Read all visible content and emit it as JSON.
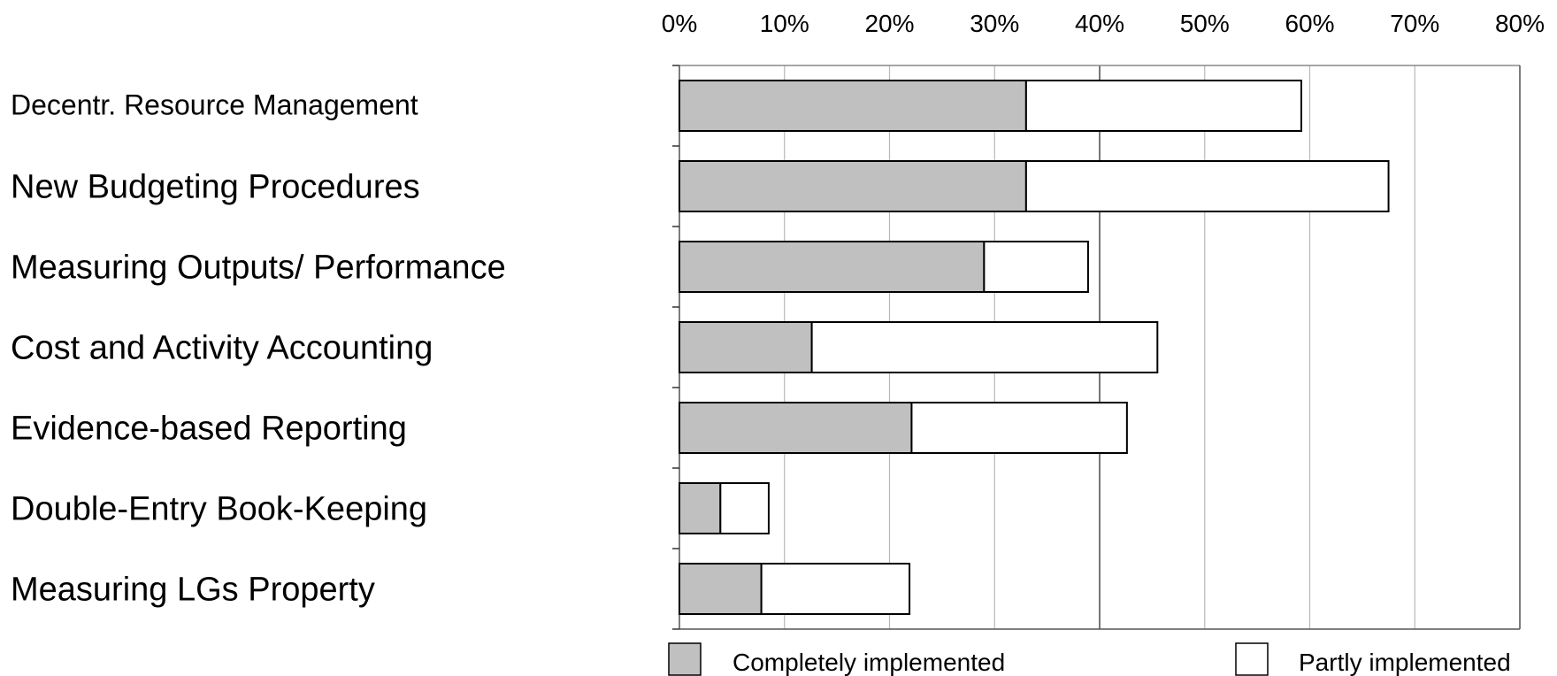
{
  "chart_data": {
    "type": "bar",
    "orientation": "horizontal",
    "stacked": true,
    "categories": [
      "Decentr. Resource Management",
      "New Budgeting Procedures",
      "Measuring Outputs/ Performance",
      "Cost and Activity Accounting",
      "Evidence-based Reporting",
      "Double-Entry Book-Keeping",
      "Measuring LGs Property"
    ],
    "series": [
      {
        "name": "Completely implemented",
        "color": "#c0c0c0",
        "values": [
          33,
          33,
          29,
          12.6,
          22.1,
          3.9,
          7.8
        ]
      },
      {
        "name": "Partly implemented",
        "color": "#ffffff",
        "values": [
          26.2,
          34.5,
          9.9,
          32.9,
          20.5,
          4.6,
          14.1
        ]
      }
    ],
    "xlim": [
      0,
      80
    ],
    "xticks": [
      0,
      10,
      20,
      30,
      40,
      50,
      60,
      70,
      80
    ],
    "xtick_labels": [
      "0%",
      "10%",
      "20%",
      "30%",
      "40%",
      "50%",
      "60%",
      "70%",
      "80%"
    ],
    "x_axis_position": "top",
    "grid": true,
    "legend": {
      "position": "bottom",
      "entries": [
        "Completely implemented",
        "Partly implemented"
      ]
    },
    "title": "",
    "xlabel": "",
    "ylabel": ""
  }
}
